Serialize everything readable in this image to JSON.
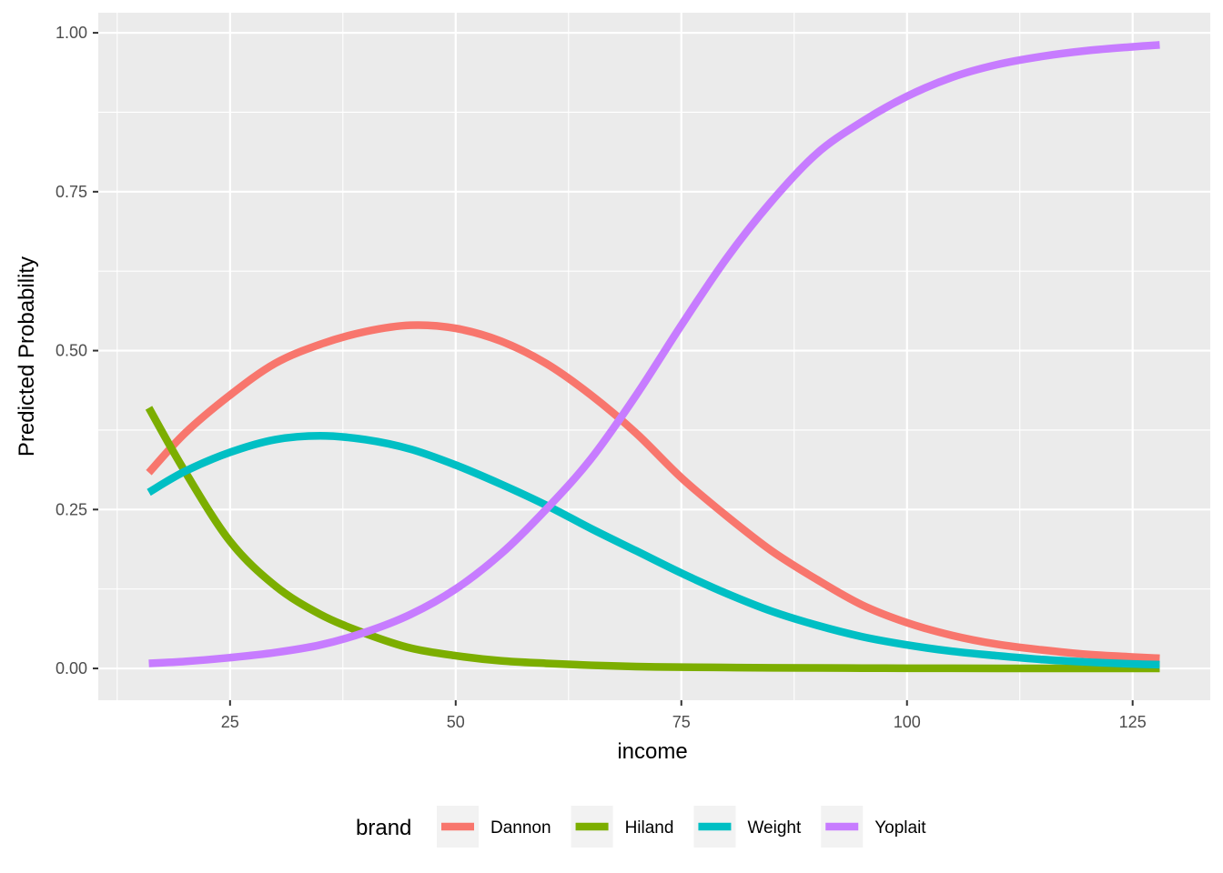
{
  "chart_data": {
    "type": "line",
    "xlabel": "income",
    "ylabel": "Predicted Probability",
    "xlim": [
      10.4,
      133.6
    ],
    "ylim": [
      -0.05,
      1.0316
    ],
    "x_ticks": [
      25,
      50,
      75,
      100,
      125
    ],
    "x_tick_labels": [
      "25",
      "50",
      "75",
      "100",
      "125"
    ],
    "y_ticks": [
      0,
      0.25,
      0.5,
      0.75,
      1.0
    ],
    "y_tick_labels": [
      "0.00",
      "0.25",
      "0.50",
      "0.75",
      "1.00"
    ],
    "grid": true,
    "legend": {
      "title": "brand",
      "position": "bottom"
    },
    "x": [
      16,
      20,
      25,
      30,
      35,
      40,
      45,
      50,
      55,
      60,
      65,
      70,
      75,
      80,
      85,
      90,
      95,
      100,
      105,
      110,
      115,
      120,
      125,
      128
    ],
    "series": [
      {
        "name": "Dannon",
        "color": "#F8766D",
        "values": [
          0.308,
          0.37,
          0.43,
          0.48,
          0.51,
          0.53,
          0.54,
          0.535,
          0.515,
          0.48,
          0.43,
          0.37,
          0.3,
          0.24,
          0.185,
          0.14,
          0.1,
          0.072,
          0.052,
          0.038,
          0.029,
          0.022,
          0.018,
          0.016
        ]
      },
      {
        "name": "Hiland",
        "color": "#7CAE00",
        "values": [
          0.41,
          0.31,
          0.2,
          0.13,
          0.085,
          0.055,
          0.032,
          0.02,
          0.012,
          0.008,
          0.005,
          0.003,
          0.002,
          0.0015,
          0.001,
          0.0007,
          0.0005,
          0.0003,
          0.0002,
          0.0001,
          0.0001,
          0.0001,
          0.0,
          0.0
        ]
      },
      {
        "name": "Weight",
        "color": "#00BFC4",
        "values": [
          0.277,
          0.31,
          0.34,
          0.36,
          0.366,
          0.36,
          0.345,
          0.32,
          0.29,
          0.257,
          0.22,
          0.185,
          0.15,
          0.118,
          0.09,
          0.068,
          0.05,
          0.037,
          0.027,
          0.02,
          0.014,
          0.01,
          0.007,
          0.006
        ]
      },
      {
        "name": "Yoplait",
        "color": "#C77CFF",
        "values": [
          0.008,
          0.011,
          0.017,
          0.025,
          0.037,
          0.057,
          0.085,
          0.125,
          0.18,
          0.25,
          0.33,
          0.43,
          0.54,
          0.645,
          0.735,
          0.81,
          0.86,
          0.9,
          0.93,
          0.95,
          0.963,
          0.972,
          0.978,
          0.981
        ]
      }
    ]
  }
}
